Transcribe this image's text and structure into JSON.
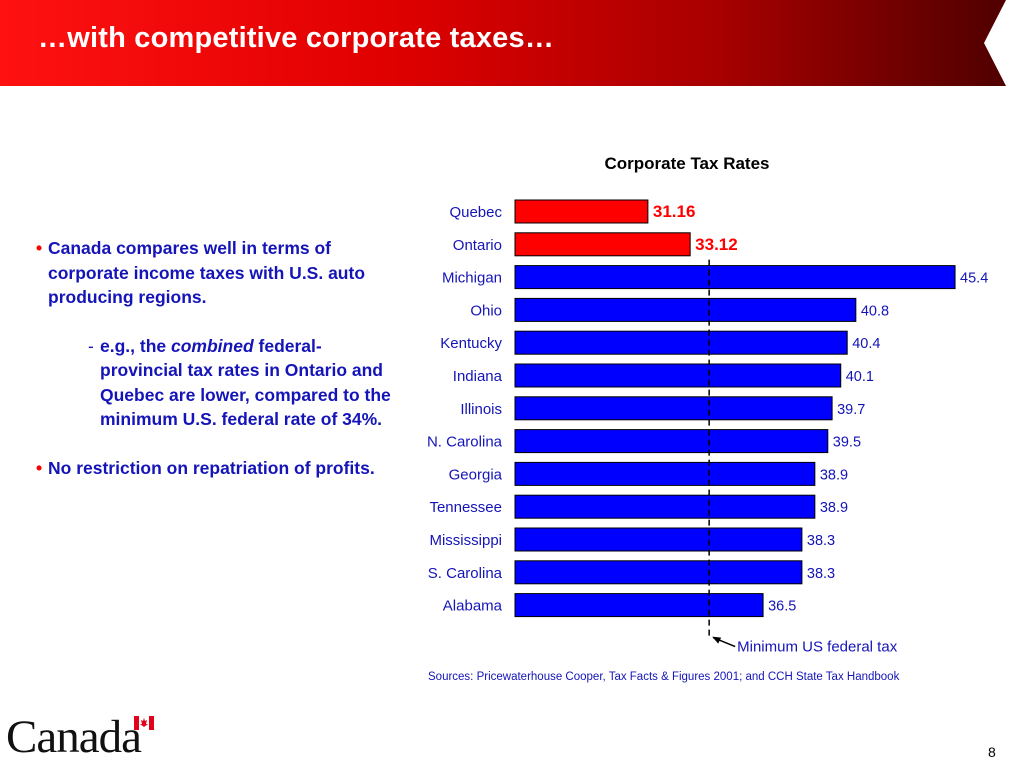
{
  "slide": {
    "title": "…with competitive corporate taxes…",
    "page_number": "8",
    "logo_text": "Canada",
    "logo_icon": "maple-leaf-flag-icon"
  },
  "bullets": {
    "b1": "Canada compares well in terms of corporate income taxes with U.S. auto producing regions.",
    "sub_dash": "-",
    "sub_prefix": "e.g., the ",
    "sub_emphasis": "combined",
    "sub_rest": " federal-provincial tax rates in Ontario and Quebec are lower, compared to the minimum U.S. federal rate of 34%.",
    "b2": "No restriction on repatriation of profits."
  },
  "chart_data": {
    "type": "bar",
    "orientation": "horizontal",
    "title": "Corporate Tax Rates",
    "categories": [
      "Quebec",
      "Ontario",
      "Michigan",
      "Ohio",
      "Kentucky",
      "Indiana",
      "Illinois",
      "N. Carolina",
      "Georgia",
      "Tennessee",
      "Mississippi",
      "S. Carolina",
      "Alabama"
    ],
    "values": [
      31.16,
      33.12,
      45.4,
      40.8,
      40.4,
      40.1,
      39.7,
      39.5,
      38.9,
      38.9,
      38.3,
      38.3,
      36.5
    ],
    "value_labels": [
      "31.16",
      "33.12",
      "45.4",
      "40.8",
      "40.4",
      "40.1",
      "39.7",
      "39.5",
      "38.9",
      "38.9",
      "38.3",
      "38.3",
      "36.5"
    ],
    "bar_colors": [
      "#ff0000",
      "#ff0000",
      "#0000ff",
      "#0000ff",
      "#0000ff",
      "#0000ff",
      "#0000ff",
      "#0000ff",
      "#0000ff",
      "#0000ff",
      "#0000ff",
      "#0000ff",
      "#0000ff"
    ],
    "label_colors": [
      "#ff0000",
      "#ff0000",
      "#1414b8",
      "#1414b8",
      "#1414b8",
      "#1414b8",
      "#1414b8",
      "#1414b8",
      "#1414b8",
      "#1414b8",
      "#1414b8",
      "#1414b8",
      "#1414b8"
    ],
    "xlim": [
      25,
      46
    ],
    "reference_line": {
      "value": 34,
      "label": "Minimum US federal tax"
    },
    "grid": false,
    "legend": "none",
    "source_note": "Sources: Pricewaterhouse Cooper, Tax Facts & Figures 2001; and CCH State Tax Handbook"
  },
  "colors": {
    "title_bar_start": "#ff1111",
    "title_bar_end": "#4a0000",
    "text_blue": "#1414b8",
    "bullet_red": "#ff0000"
  }
}
